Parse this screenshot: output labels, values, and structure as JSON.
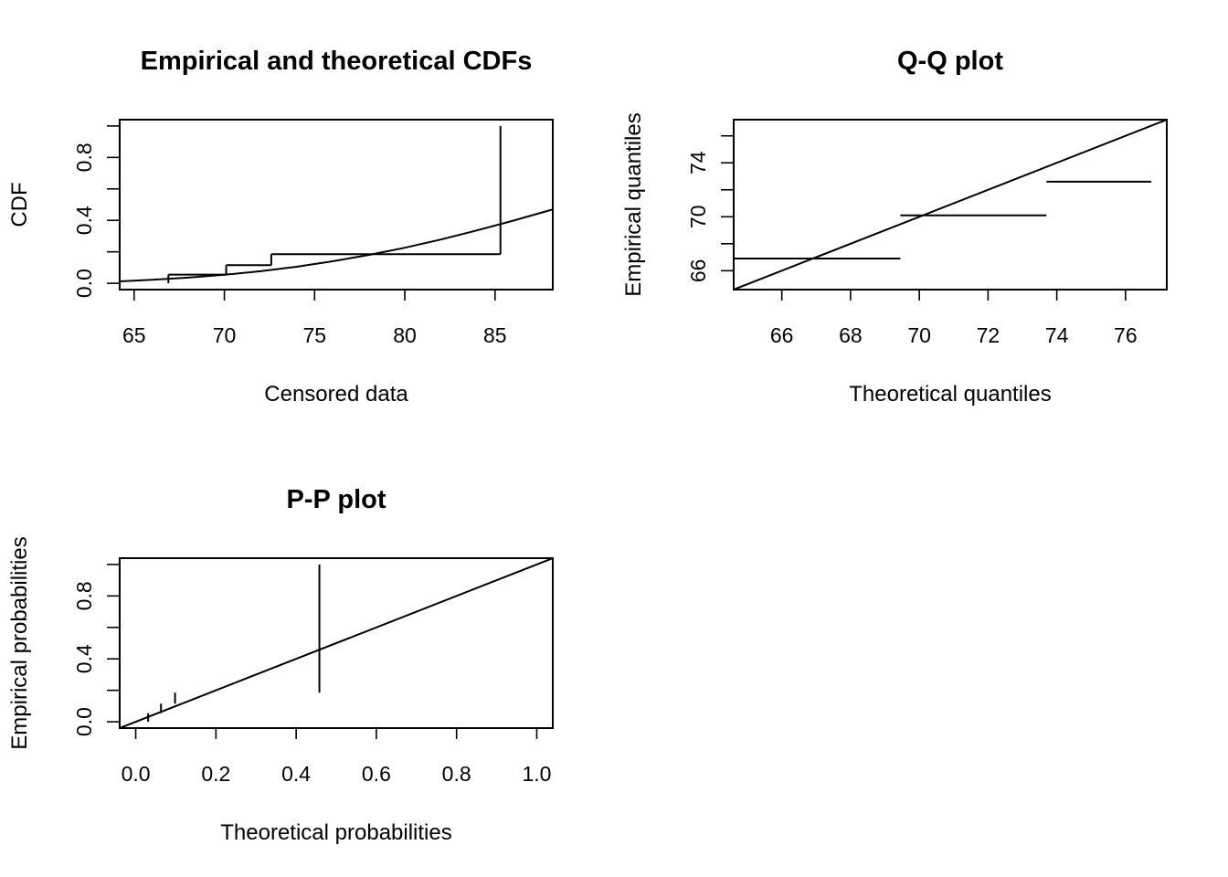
{
  "chart_data": [
    {
      "type": "line",
      "title": "Empirical and theoretical CDFs",
      "xlabel": "Censored data",
      "ylabel": "CDF",
      "xlim": [
        64.2,
        88.2
      ],
      "ylim": [
        -0.04,
        1.04
      ],
      "xticks": [
        65,
        70,
        75,
        80,
        85
      ],
      "xtick_labels": [
        "65",
        "70",
        "75",
        "80",
        "85"
      ],
      "yticks": [
        0.0,
        0.2,
        0.4,
        0.6,
        0.8,
        1.0
      ],
      "ytick_labels": [
        "0.0",
        "",
        "0.4",
        "",
        "0.8",
        ""
      ],
      "series": [
        {
          "type": "step",
          "color": "#000000",
          "segments": [
            [
              [
                66.9,
                0.0
              ],
              [
                66.9,
                0.055
              ]
            ],
            [
              [
                66.9,
                0.055
              ],
              [
                70.1,
                0.055
              ]
            ],
            [
              [
                70.1,
                0.055
              ],
              [
                70.1,
                0.115
              ]
            ],
            [
              [
                70.1,
                0.115
              ],
              [
                72.6,
                0.115
              ]
            ],
            [
              [
                72.6,
                0.115
              ],
              [
                72.6,
                0.185
              ]
            ],
            [
              [
                72.6,
                0.185
              ],
              [
                85.3,
                0.185
              ]
            ],
            [
              [
                85.3,
                0.185
              ],
              [
                85.3,
                1.0
              ]
            ]
          ]
        },
        {
          "type": "curve",
          "color": "#e31a1c",
          "x": [
            64.2,
            66,
            68,
            70,
            72,
            74,
            76,
            78,
            80,
            82,
            84,
            86,
            88.2
          ],
          "y": [
            0.012,
            0.022,
            0.036,
            0.054,
            0.077,
            0.105,
            0.14,
            0.18,
            0.226,
            0.278,
            0.336,
            0.398,
            0.47
          ]
        }
      ]
    },
    {
      "type": "line",
      "title": "Q-Q plot",
      "xlabel": "Theoretical quantiles",
      "ylabel": "Empirical quantiles",
      "xlim": [
        64.6,
        77.2
      ],
      "ylim": [
        64.6,
        77.2
      ],
      "xticks": [
        66,
        68,
        70,
        72,
        74,
        76
      ],
      "xtick_labels": [
        "66",
        "68",
        "70",
        "72",
        "74",
        "76"
      ],
      "yticks": [
        66,
        68,
        70,
        72,
        74,
        76
      ],
      "ytick_labels": [
        "66",
        "",
        "70",
        "",
        "74",
        ""
      ],
      "series": [
        {
          "type": "segments",
          "color": "#000000",
          "segments": [
            [
              [
                64.6,
                66.9
              ],
              [
                69.45,
                66.9
              ]
            ],
            [
              [
                69.45,
                70.1
              ],
              [
                73.7,
                70.1
              ]
            ],
            [
              [
                73.7,
                72.6
              ],
              [
                76.75,
                72.6
              ]
            ]
          ]
        },
        {
          "type": "abline",
          "color": "#000000",
          "segments": [
            [
              [
                64.6,
                64.6
              ],
              [
                77.2,
                77.2
              ]
            ]
          ]
        }
      ]
    },
    {
      "type": "line",
      "title": "P-P plot",
      "xlabel": "Theoretical probabilities",
      "ylabel": "Empirical probabilities",
      "xlim": [
        -0.04,
        1.04
      ],
      "ylim": [
        -0.04,
        1.04
      ],
      "xticks": [
        0.0,
        0.2,
        0.4,
        0.6,
        0.8,
        1.0
      ],
      "xtick_labels": [
        "0.0",
        "0.2",
        "0.4",
        "0.6",
        "0.8",
        "1.0"
      ],
      "yticks": [
        0.0,
        0.2,
        0.4,
        0.6,
        0.8,
        1.0
      ],
      "ytick_labels": [
        "0.0",
        "",
        "0.4",
        "",
        "0.8",
        ""
      ],
      "series": [
        {
          "type": "segments",
          "color": "#000000",
          "segments": [
            [
              [
                0.031,
                0.0
              ],
              [
                0.031,
                0.055
              ]
            ],
            [
              [
                0.063,
                0.055
              ],
              [
                0.063,
                0.115
              ]
            ],
            [
              [
                0.098,
                0.115
              ],
              [
                0.098,
                0.185
              ]
            ],
            [
              [
                0.458,
                0.185
              ],
              [
                0.458,
                1.0
              ]
            ]
          ]
        },
        {
          "type": "abline",
          "color": "#000000",
          "segments": [
            [
              [
                -0.04,
                -0.04
              ],
              [
                1.04,
                1.04
              ]
            ]
          ]
        }
      ]
    }
  ]
}
